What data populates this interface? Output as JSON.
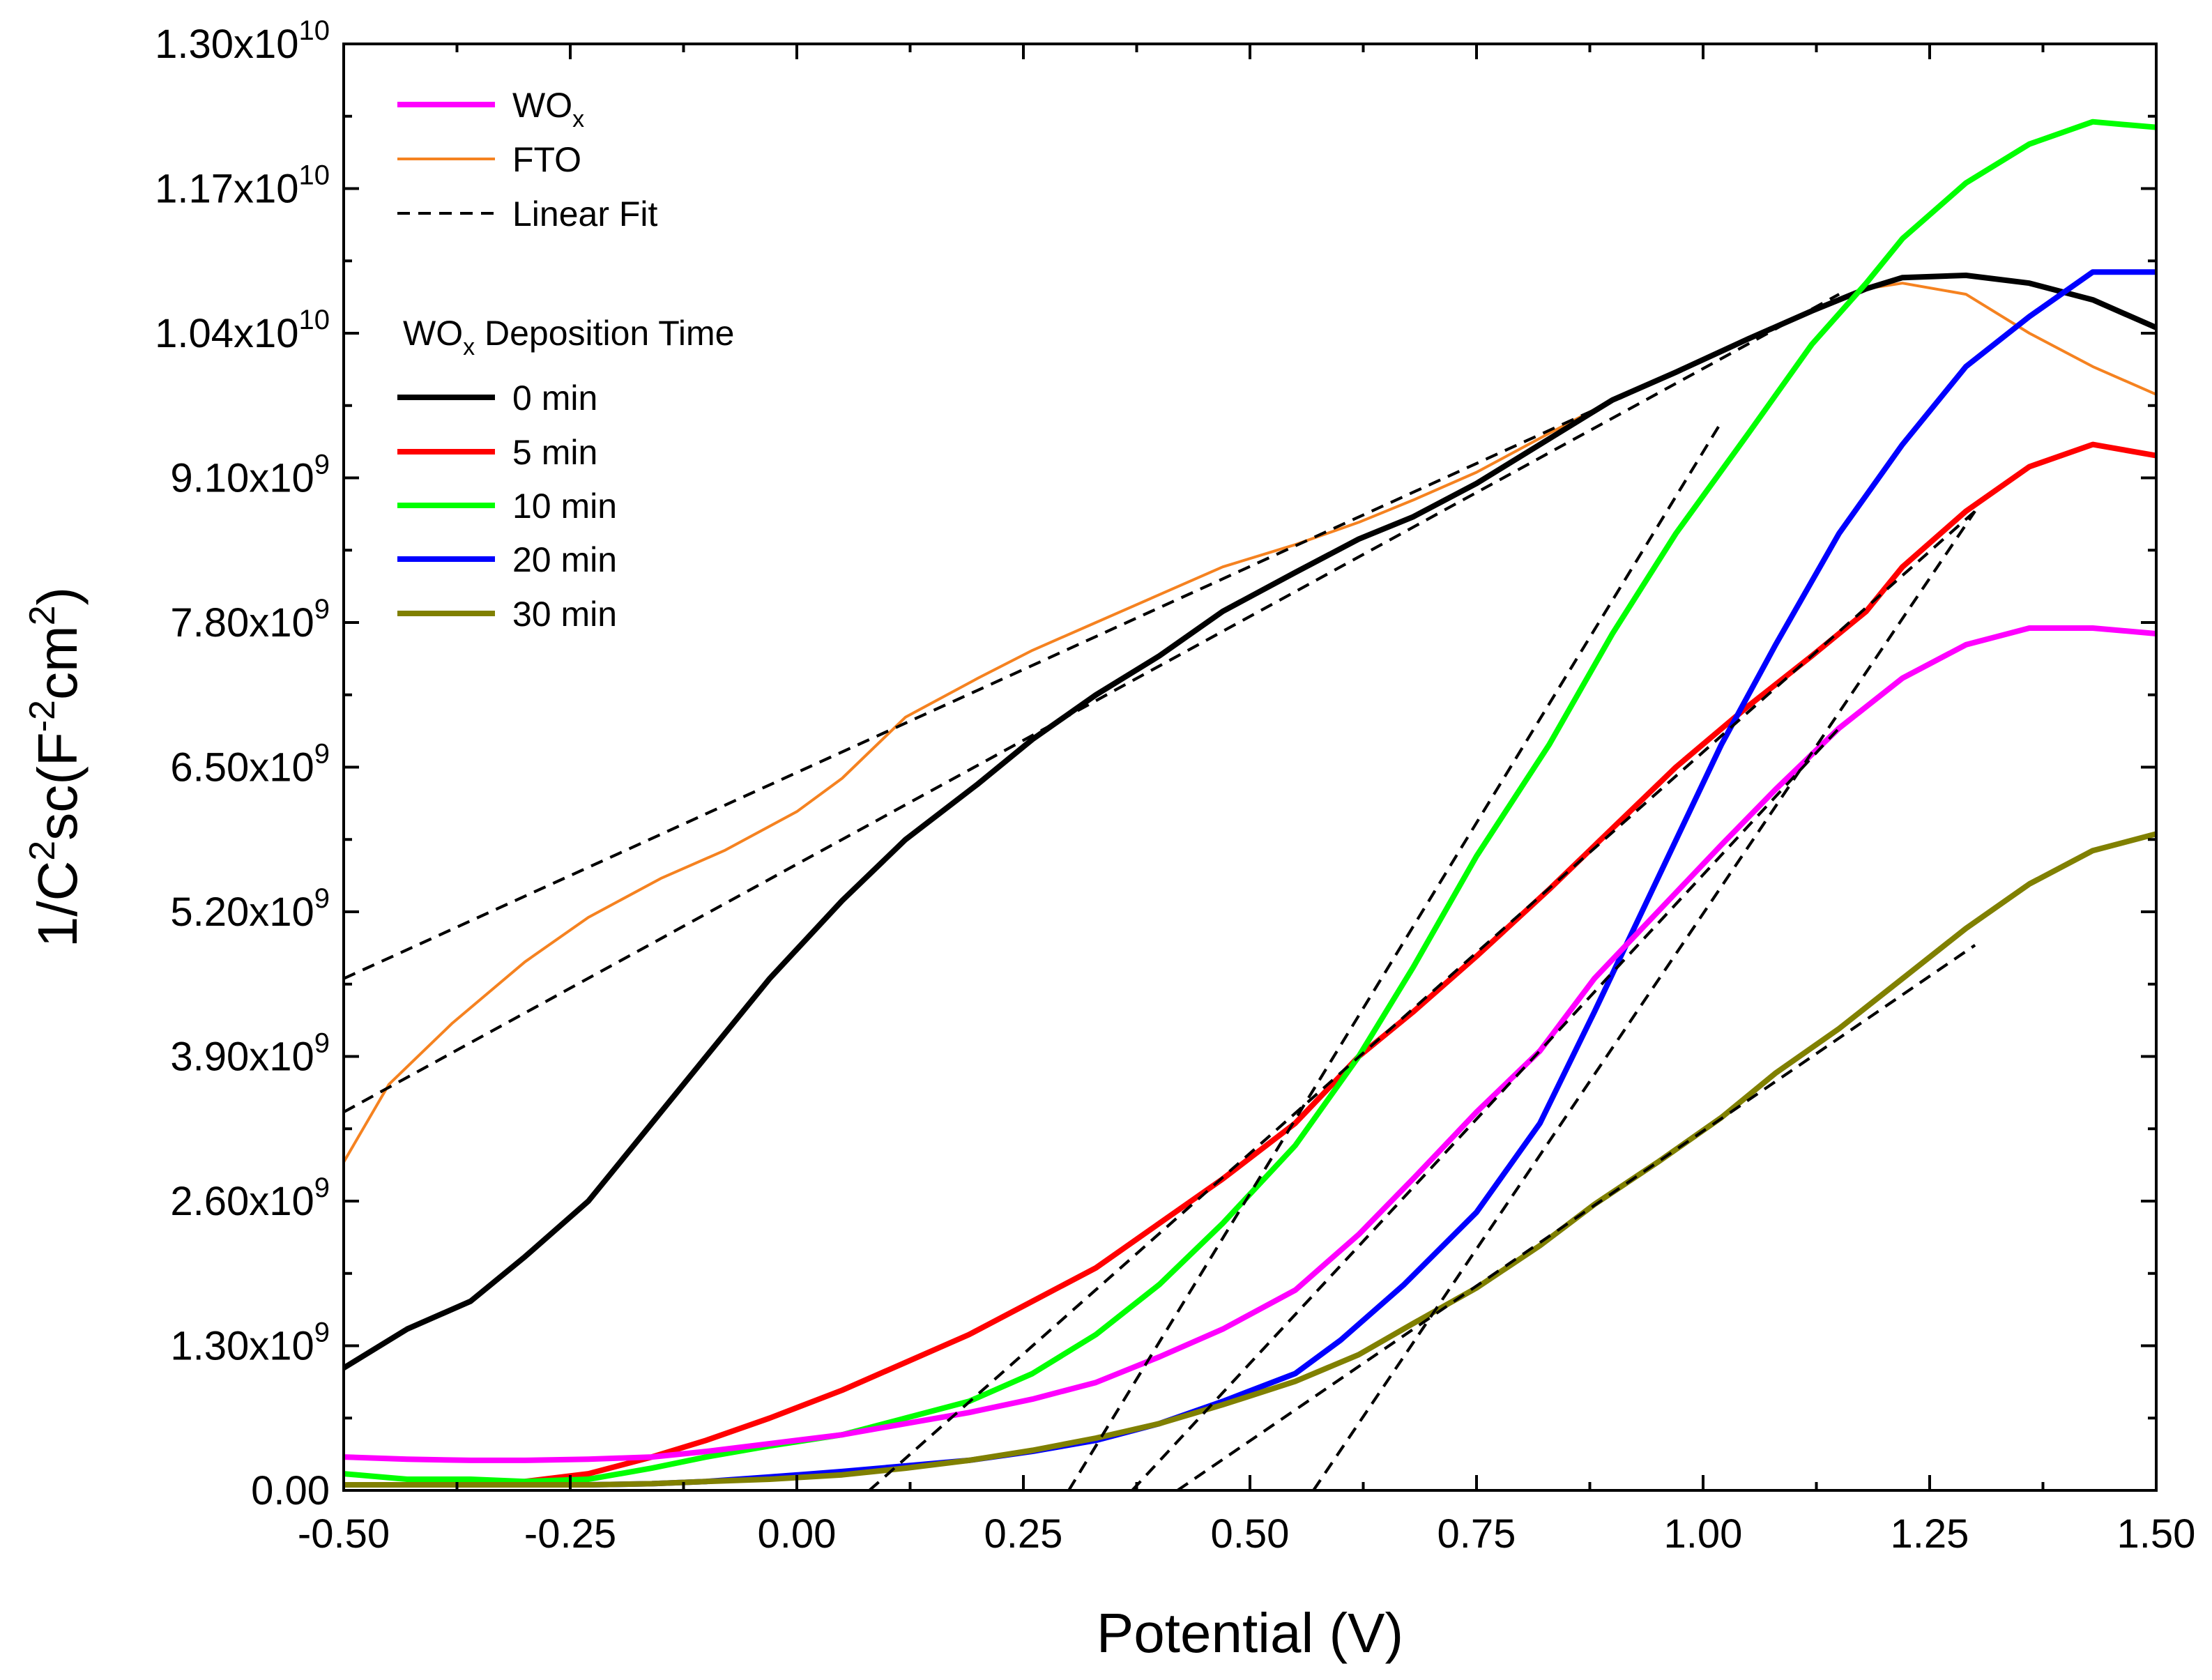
{
  "chart_data": {
    "type": "line",
    "title": "",
    "xlabel": "Potential (V)",
    "ylabel_parts": {
      "base": "1/C",
      "sup1": "2",
      "mid": "sc(F",
      "sup2": "-2",
      "mid2": "cm",
      "sup3": "2",
      "end": ")"
    },
    "xlim": [
      -0.5,
      1.5
    ],
    "ylim": [
      0,
      13000000000
    ],
    "x_ticks": [
      -0.5,
      -0.25,
      0.0,
      0.25,
      0.5,
      0.75,
      1.0,
      1.25,
      1.5
    ],
    "x_tick_labels": [
      "-0.50",
      "-0.25",
      "0.00",
      "0.25",
      "0.50",
      "0.75",
      "1.00",
      "1.25",
      "1.50"
    ],
    "y_ticks": [
      0,
      1300000000,
      2600000000,
      3900000000,
      5200000000,
      6500000000,
      7800000000,
      9100000000,
      10400000000,
      11700000000,
      13000000000
    ],
    "y_tick_labels": [
      {
        "mant": "0.00",
        "exp": ""
      },
      {
        "mant": "1.30x10",
        "exp": "9"
      },
      {
        "mant": "2.60x10",
        "exp": "9"
      },
      {
        "mant": "3.90x10",
        "exp": "9"
      },
      {
        "mant": "5.20x10",
        "exp": "9"
      },
      {
        "mant": "6.50x10",
        "exp": "9"
      },
      {
        "mant": "7.80x10",
        "exp": "9"
      },
      {
        "mant": "9.10x10",
        "exp": "9"
      },
      {
        "mant": "1.04x10",
        "exp": "10"
      },
      {
        "mant": "1.17x10",
        "exp": "10"
      },
      {
        "mant": "1.30x10",
        "exp": "10"
      }
    ],
    "legend": {
      "position": "top-left",
      "heading": {
        "base": "WO",
        "sub": "x",
        "rest": " Deposition Time"
      },
      "entries_top": [
        {
          "series": "WOx",
          "base": "WO",
          "sub": "x"
        },
        {
          "series": "FTO",
          "base": "FTO",
          "sub": ""
        },
        {
          "series": "Linear Fit",
          "base": "Linear Fit",
          "sub": ""
        }
      ],
      "entries_time": [
        "0 min",
        "5 min",
        "10 min",
        "20 min",
        "30 min"
      ]
    },
    "series": [
      {
        "name": "FTO",
        "color": "#F58220",
        "width": 4,
        "x": [
          -0.5,
          -0.45,
          -0.38,
          -0.3,
          -0.23,
          -0.15,
          -0.08,
          0.0,
          0.05,
          0.12,
          0.2,
          0.26,
          0.33,
          0.4,
          0.47,
          0.55,
          0.62,
          0.68,
          0.75,
          0.83,
          0.9,
          0.97,
          1.05,
          1.12,
          1.18,
          1.22,
          1.29,
          1.36,
          1.43,
          1.5
        ],
        "y": [
          2950000000.0,
          3650000000.0,
          4200000000.0,
          4750000000.0,
          5150000000.0,
          5500000000.0,
          5750000000.0,
          6100000000.0,
          6400000000.0,
          6950000000.0,
          7300000000.0,
          7550000000.0,
          7800000000.0,
          8050000000.0,
          8300000000.0,
          8500000000.0,
          8700000000.0,
          8900000000.0,
          9150000000.0,
          9500000000.0,
          9800000000.0,
          10050000000.0,
          10350000000.0,
          10600000000.0,
          10800000000.0,
          10850000000.0,
          10750000000.0,
          10400000000.0,
          10100000000.0,
          9850000000.0
        ]
      },
      {
        "name": "0 min",
        "color": "#000000",
        "width": 8,
        "x": [
          -0.5,
          -0.43,
          -0.36,
          -0.3,
          -0.23,
          -0.16,
          -0.1,
          -0.03,
          0.05,
          0.12,
          0.2,
          0.26,
          0.33,
          0.4,
          0.47,
          0.55,
          0.62,
          0.68,
          0.75,
          0.83,
          0.9,
          0.97,
          1.05,
          1.12,
          1.18,
          1.22,
          1.29,
          1.36,
          1.43,
          1.5
        ],
        "y": [
          1100000000.0,
          1450000000.0,
          1700000000.0,
          2100000000.0,
          2600000000.0,
          3300000000.0,
          3900000000.0,
          4600000000.0,
          5300000000.0,
          5850000000.0,
          6350000000.0,
          6750000000.0,
          7150000000.0,
          7500000000.0,
          7900000000.0,
          8250000000.0,
          8550000000.0,
          8750000000.0,
          9050000000.0,
          9450000000.0,
          9800000000.0,
          10050000000.0,
          10350000000.0,
          10600000000.0,
          10800000000.0,
          10900000000.0,
          10920000000.0,
          10850000000.0,
          10700000000.0,
          10450000000.0
        ]
      },
      {
        "name": "5 min",
        "color": "#FF0000",
        "width": 8,
        "x": [
          -0.5,
          -0.43,
          -0.36,
          -0.3,
          -0.23,
          -0.16,
          -0.1,
          -0.03,
          0.05,
          0.12,
          0.19,
          0.26,
          0.33,
          0.4,
          0.47,
          0.55,
          0.62,
          0.68,
          0.75,
          0.83,
          0.9,
          0.97,
          1.05,
          1.12,
          1.18,
          1.22,
          1.29,
          1.36,
          1.43,
          1.5
        ],
        "y": [
          50000000.0,
          50000000.0,
          50000000.0,
          80000000.0,
          150000000.0,
          300000000.0,
          450000000.0,
          650000000.0,
          900000000.0,
          1150000000.0,
          1400000000.0,
          1700000000.0,
          2000000000.0,
          2400000000.0,
          2800000000.0,
          3300000000.0,
          3900000000.0,
          4300000000.0,
          4800000000.0,
          5400000000.0,
          5950000000.0,
          6500000000.0,
          7050000000.0,
          7500000000.0,
          7900000000.0,
          8300000000.0,
          8800000000.0,
          9200000000.0,
          9400000000.0,
          9300000000.0
        ]
      },
      {
        "name": "10 min",
        "color": "#00FF00",
        "width": 8,
        "x": [
          -0.5,
          -0.43,
          -0.36,
          -0.3,
          -0.23,
          -0.16,
          -0.1,
          -0.03,
          0.05,
          0.12,
          0.19,
          0.26,
          0.33,
          0.4,
          0.47,
          0.55,
          0.62,
          0.68,
          0.75,
          0.83,
          0.9,
          0.97,
          1.05,
          1.12,
          1.18,
          1.22,
          1.29,
          1.36,
          1.43,
          1.5
        ],
        "y": [
          150000000.0,
          100000000.0,
          100000000.0,
          80000000.0,
          100000000.0,
          200000000.0,
          300000000.0,
          400000000.0,
          500000000.0,
          650000000.0,
          800000000.0,
          1050000000.0,
          1400000000.0,
          1850000000.0,
          2400000000.0,
          3100000000.0,
          3900000000.0,
          4700000000.0,
          5700000000.0,
          6700000000.0,
          7700000000.0,
          8600000000.0,
          9500000000.0,
          10300000000.0,
          10850000000.0,
          11250000000.0,
          11750000000.0,
          12100000000.0,
          12300000000.0,
          12250000000.0
        ]
      },
      {
        "name": "20 min",
        "color": "#0000FF",
        "width": 8,
        "x": [
          -0.5,
          -0.43,
          -0.36,
          -0.3,
          -0.23,
          -0.16,
          -0.1,
          -0.03,
          0.05,
          0.12,
          0.19,
          0.26,
          0.33,
          0.4,
          0.47,
          0.55,
          0.6,
          0.67,
          0.75,
          0.82,
          0.88,
          0.95,
          1.02,
          1.08,
          1.15,
          1.22,
          1.29,
          1.36,
          1.43,
          1.5
        ],
        "y": [
          50000000.0,
          50000000.0,
          50000000.0,
          50000000.0,
          50000000.0,
          60000000.0,
          80000000.0,
          120000000.0,
          170000000.0,
          220000000.0,
          270000000.0,
          350000000.0,
          450000000.0,
          600000000.0,
          800000000.0,
          1050000000.0,
          1350000000.0,
          1850000000.0,
          2500000000.0,
          3300000000.0,
          4300000000.0,
          5500000000.0,
          6700000000.0,
          7600000000.0,
          8600000000.0,
          9400000000.0,
          10100000000.0,
          10550000000.0,
          10950000000.0,
          10950000000.0
        ]
      },
      {
        "name": "WOx",
        "color": "#FF00FF",
        "width": 8,
        "x": [
          -0.5,
          -0.43,
          -0.36,
          -0.3,
          -0.23,
          -0.16,
          -0.1,
          -0.03,
          0.05,
          0.12,
          0.19,
          0.26,
          0.33,
          0.4,
          0.47,
          0.55,
          0.62,
          0.68,
          0.75,
          0.82,
          0.88,
          0.95,
          1.02,
          1.08,
          1.15,
          1.22,
          1.29,
          1.36,
          1.43,
          1.5
        ],
        "y": [
          300000000.0,
          280000000.0,
          270000000.0,
          270000000.0,
          280000000.0,
          300000000.0,
          350000000.0,
          420000000.0,
          500000000.0,
          600000000.0,
          700000000.0,
          820000000.0,
          970000000.0,
          1200000000.0,
          1450000000.0,
          1800000000.0,
          2300000000.0,
          2800000000.0,
          3400000000.0,
          3950000000.0,
          4600000000.0,
          5200000000.0,
          5800000000.0,
          6300000000.0,
          6850000000.0,
          7300000000.0,
          7600000000.0,
          7750000000.0,
          7750000000.0,
          7700000000.0
        ]
      },
      {
        "name": "30 min",
        "color": "#808000",
        "width": 8,
        "x": [
          -0.5,
          -0.43,
          -0.36,
          -0.3,
          -0.23,
          -0.16,
          -0.1,
          -0.03,
          0.05,
          0.12,
          0.19,
          0.26,
          0.33,
          0.4,
          0.47,
          0.55,
          0.62,
          0.68,
          0.75,
          0.82,
          0.88,
          0.95,
          1.02,
          1.08,
          1.15,
          1.22,
          1.29,
          1.36,
          1.43,
          1.5
        ],
        "y": [
          50000000.0,
          50000000.0,
          50000000.0,
          50000000.0,
          50000000.0,
          60000000.0,
          80000000.0,
          100000000.0,
          140000000.0,
          200000000.0,
          270000000.0,
          360000000.0,
          470000000.0,
          600000000.0,
          770000000.0,
          980000000.0,
          1220000000.0,
          1500000000.0,
          1820000000.0,
          2200000000.0,
          2570000000.0,
          2950000000.0,
          3350000000.0,
          3750000000.0,
          4150000000.0,
          4600000000.0,
          5050000000.0,
          5450000000.0,
          5750000000.0,
          5900000000.0
        ]
      }
    ],
    "linear_fits": [
      {
        "name": "FTO fit",
        "x": [
          -0.5,
          1.12
        ],
        "y": [
          4600000000.0,
          10600000000.0
        ]
      },
      {
        "name": "0 min fit",
        "x": [
          -0.5,
          1.15
        ],
        "y": [
          3400000000.0,
          10750000000.0
        ]
      },
      {
        "name": "5 min fit",
        "x": [
          0.08,
          1.3
        ],
        "y": [
          0.0,
          8800000000.0
        ]
      },
      {
        "name": "10 min fit",
        "x": [
          0.3,
          1.02
        ],
        "y": [
          0.0,
          9600000000.0
        ]
      },
      {
        "name": "20 min fit",
        "x": [
          0.57,
          1.3
        ],
        "y": [
          0.0,
          8800000000.0
        ]
      },
      {
        "name": "WOx fit",
        "x": [
          0.37,
          1.15
        ],
        "y": [
          0.0,
          6850000000.0
        ]
      },
      {
        "name": "30 min fit",
        "x": [
          0.42,
          1.3
        ],
        "y": [
          0.0,
          4900000000.0
        ]
      }
    ],
    "linear_fit_color": "#000000",
    "grid": false
  }
}
